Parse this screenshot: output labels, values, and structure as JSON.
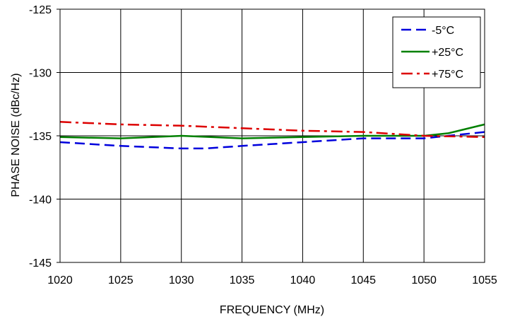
{
  "chart_data": {
    "type": "line",
    "title": "",
    "xlabel": "FREQUENCY (MHz)",
    "ylabel": "PHASE NOISE  (dBc/Hz)",
    "xlim": [
      1020,
      1055
    ],
    "ylim": [
      -145,
      -125
    ],
    "x_ticks": [
      "1020",
      "1025",
      "1030",
      "1035",
      "1040",
      "1045",
      "1050",
      "1055"
    ],
    "y_ticks": [
      "-125",
      "-130",
      "-135",
      "-140",
      "-145"
    ],
    "grid": true,
    "legend_position": "top-right",
    "series": [
      {
        "name": "-5°C",
        "color": "#0000dd",
        "dash": "dashed",
        "x": [
          1020,
          1025,
          1030,
          1032,
          1035,
          1040,
          1045,
          1050,
          1055
        ],
        "y": [
          -135.5,
          -135.8,
          -136.0,
          -136.0,
          -135.8,
          -135.5,
          -135.2,
          -135.2,
          -134.7
        ]
      },
      {
        "name": "+25°C",
        "color": "#008000",
        "dash": "solid",
        "x": [
          1020,
          1025,
          1030,
          1035,
          1040,
          1045,
          1050,
          1052,
          1055
        ],
        "y": [
          -135.1,
          -135.2,
          -135.0,
          -135.2,
          -135.1,
          -135.0,
          -135.0,
          -134.8,
          -134.1
        ]
      },
      {
        "name": "+75°C",
        "color": "#dd0000",
        "dash": "dash-dot",
        "x": [
          1020,
          1025,
          1030,
          1035,
          1040,
          1045,
          1050,
          1055
        ],
        "y": [
          -133.9,
          -134.1,
          -134.2,
          -134.4,
          -134.6,
          -134.7,
          -135.0,
          -135.1
        ]
      }
    ]
  }
}
